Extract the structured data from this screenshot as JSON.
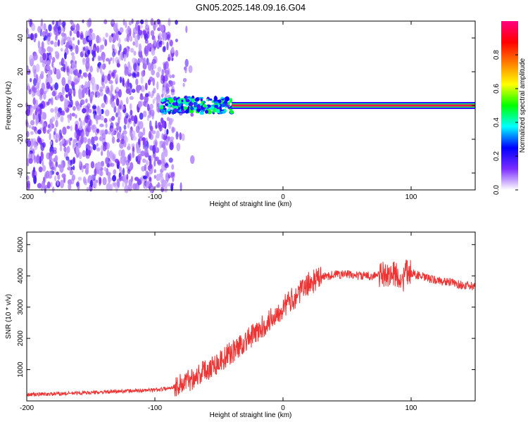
{
  "figure_title": "GN05.2025.148.09.16.G04",
  "chart_data": [
    {
      "type": "heatmap",
      "xlabel": "Height of straight line (km)",
      "ylabel": "Frequency (Hz)",
      "xlim": [
        -200,
        150
      ],
      "ylim": [
        -50,
        50
      ],
      "xticks": [
        -200,
        -100,
        0,
        100
      ],
      "yticks": [
        -40,
        -20,
        0,
        20,
        40
      ],
      "colorbar": {
        "label": "Normalized spectral amplitude",
        "range": [
          0,
          1
        ],
        "ticks": [
          0.0,
          0.2,
          0.4,
          0.6,
          0.8
        ],
        "tick_labels": [
          "0.0",
          "0.2",
          "0.4",
          "0.6",
          "0.8"
        ],
        "colormap": "rainbow",
        "colors": [
          "#ffffff",
          "#7b2cff",
          "#0000ff",
          "#00ffff",
          "#00ff00",
          "#ffff00",
          "#ff8000",
          "#ff0000",
          "#ff0080"
        ]
      },
      "signal": {
        "noise_region_x": [
          -200,
          -85
        ],
        "transition_x": [
          -95,
          -40
        ],
        "line_start_x": -40,
        "line_center_hz": 0,
        "peak_value": 1.0
      }
    },
    {
      "type": "line",
      "xlabel": "Height of straight line (km)",
      "ylabel": "SNR (10 * v/v)",
      "xlim": [
        -200,
        150
      ],
      "ylim": [
        0,
        5400
      ],
      "xticks": [
        -200,
        -100,
        0,
        100
      ],
      "yticks": [
        1000,
        2000,
        3000,
        4000,
        5000
      ],
      "color": "#ee3333",
      "x": [
        -200,
        -180,
        -160,
        -140,
        -120,
        -100,
        -90,
        -80,
        -70,
        -60,
        -50,
        -40,
        -30,
        -20,
        -10,
        0,
        10,
        20,
        30,
        40,
        50,
        60,
        70,
        80,
        90,
        93,
        95,
        100,
        110,
        120,
        130,
        140,
        150
      ],
      "y": [
        200,
        220,
        250,
        280,
        320,
        350,
        400,
        520,
        750,
        1000,
        1250,
        1550,
        1900,
        2200,
        2600,
        3000,
        3350,
        3750,
        3950,
        4050,
        4050,
        4000,
        4000,
        4050,
        4050,
        3700,
        4100,
        4100,
        3950,
        3850,
        3800,
        3700,
        3650
      ]
    }
  ]
}
